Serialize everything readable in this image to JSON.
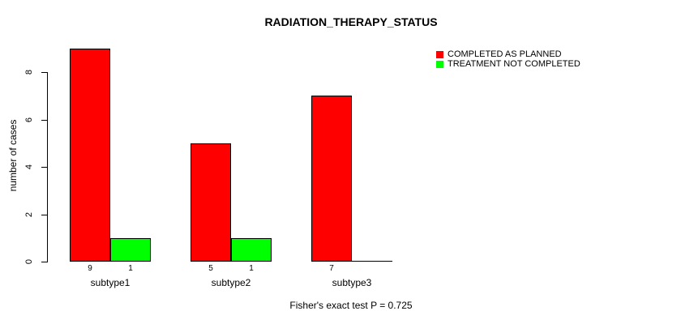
{
  "title": "RADIATION_THERAPY_STATUS",
  "caption": "Fisher's exact test P = 0.725",
  "chart_data": {
    "type": "bar",
    "title": "RADIATION_THERAPY_STATUS",
    "categories": [
      "subtype1",
      "subtype2",
      "subtype3"
    ],
    "series": [
      {
        "name": "COMPLETED AS PLANNED",
        "color": "#ff0000",
        "values": [
          9,
          5,
          7
        ]
      },
      {
        "name": "TREATMENT NOT COMPLETED",
        "color": "#00ff00",
        "values": [
          1,
          1,
          0
        ]
      }
    ],
    "ylabel": "number of cases",
    "xlabel": "",
    "yticks": [
      0,
      2,
      4,
      6,
      8
    ],
    "ylim": [
      0,
      9
    ],
    "grid": false,
    "legend_position": "top-right",
    "bar_value_labels": [
      [
        9,
        1
      ],
      [
        5,
        1
      ],
      [
        7,
        null
      ]
    ],
    "annotation": "Fisher's exact test P = 0.725"
  }
}
